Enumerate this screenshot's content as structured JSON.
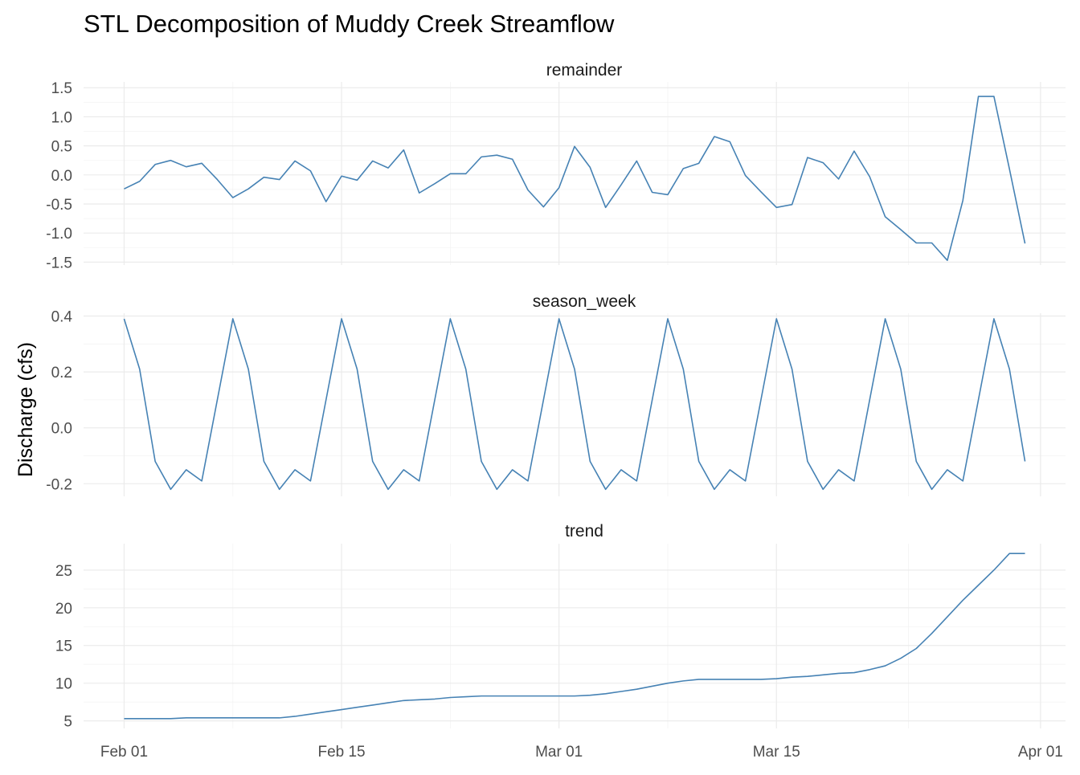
{
  "chart_data": {
    "type": "line",
    "title": "STL Decomposition of Muddy Creek Streamflow",
    "ylabel": "Discharge (cfs)",
    "xlabel": "",
    "series_color": "#4682B4",
    "x_axis": {
      "start": "2021-02-01",
      "end": "2021-03-31",
      "ticks": [
        {
          "date": "2021-02-01",
          "label": "Feb 01"
        },
        {
          "date": "2021-02-15",
          "label": "Feb 15"
        },
        {
          "date": "2021-03-01",
          "label": "Mar 01"
        },
        {
          "date": "2021-03-15",
          "label": "Mar 15"
        },
        {
          "date": "2021-04-01",
          "label": "Apr 01"
        }
      ]
    },
    "panels": [
      {
        "name": "remainder",
        "ylim": [
          -1.55,
          1.6
        ],
        "yticks": [
          -1.5,
          -1.0,
          -0.5,
          0.0,
          0.5,
          1.0,
          1.5
        ],
        "ytick_labels": [
          "-1.5",
          "-1.0",
          "-0.5",
          "0.0",
          "0.5",
          "1.0",
          "1.5"
        ],
        "values": [
          -0.24,
          -0.11,
          0.18,
          0.25,
          0.14,
          0.2,
          -0.08,
          -0.39,
          -0.24,
          -0.04,
          -0.08,
          0.24,
          0.07,
          -0.46,
          -0.02,
          -0.09,
          0.24,
          0.12,
          0.43,
          -0.31,
          -0.15,
          0.02,
          0.02,
          0.31,
          0.34,
          0.27,
          -0.26,
          -0.55,
          -0.22,
          0.49,
          0.13,
          -0.56,
          -0.17,
          0.24,
          -0.3,
          -0.34,
          0.11,
          0.2,
          0.66,
          0.57,
          -0.01,
          -0.29,
          -0.56,
          -0.51,
          0.3,
          0.21,
          -0.07,
          0.41,
          -0.03,
          -0.72,
          -0.94,
          -1.17,
          -1.17,
          -1.47,
          -0.44,
          1.35,
          1.35,
          0.1,
          -1.18
        ]
      },
      {
        "name": "season_week",
        "ylim": [
          -0.245,
          0.41
        ],
        "yticks": [
          -0.2,
          0.0,
          0.2,
          0.4
        ],
        "ytick_labels": [
          "-0.2",
          "0.0",
          "0.2",
          "0.4"
        ],
        "values": [
          0.39,
          0.21,
          -0.12,
          -0.22,
          -0.15,
          -0.19,
          0.1,
          0.39,
          0.21,
          -0.12,
          -0.22,
          -0.15,
          -0.19,
          0.1,
          0.39,
          0.21,
          -0.12,
          -0.22,
          -0.15,
          -0.19,
          0.1,
          0.39,
          0.21,
          -0.12,
          -0.22,
          -0.15,
          -0.19,
          0.1,
          0.39,
          0.21,
          -0.12,
          -0.22,
          -0.15,
          -0.19,
          0.1,
          0.39,
          0.21,
          -0.12,
          -0.22,
          -0.15,
          -0.19,
          0.1,
          0.39,
          0.21,
          -0.12,
          -0.22,
          -0.15,
          -0.19,
          0.1,
          0.39,
          0.21,
          -0.12,
          -0.22,
          -0.15,
          -0.19,
          0.1,
          0.39,
          0.21,
          -0.12
        ]
      },
      {
        "name": "trend",
        "ylim": [
          4.0,
          28.5
        ],
        "yticks": [
          5,
          10,
          15,
          20,
          25
        ],
        "ytick_labels": [
          "5",
          "10",
          "15",
          "20",
          "25"
        ],
        "values": [
          5.3,
          5.3,
          5.3,
          5.3,
          5.4,
          5.4,
          5.4,
          5.4,
          5.4,
          5.4,
          5.4,
          5.6,
          5.9,
          6.2,
          6.5,
          6.8,
          7.1,
          7.4,
          7.7,
          7.8,
          7.9,
          8.1,
          8.2,
          8.3,
          8.3,
          8.3,
          8.3,
          8.3,
          8.3,
          8.3,
          8.4,
          8.6,
          8.9,
          9.2,
          9.6,
          10.0,
          10.3,
          10.5,
          10.5,
          10.5,
          10.5,
          10.5,
          10.6,
          10.8,
          10.9,
          11.1,
          11.3,
          11.4,
          11.8,
          12.3,
          13.3,
          14.6,
          16.6,
          18.8,
          21.0,
          23.0,
          25.0,
          27.2,
          27.2
        ]
      }
    ]
  }
}
